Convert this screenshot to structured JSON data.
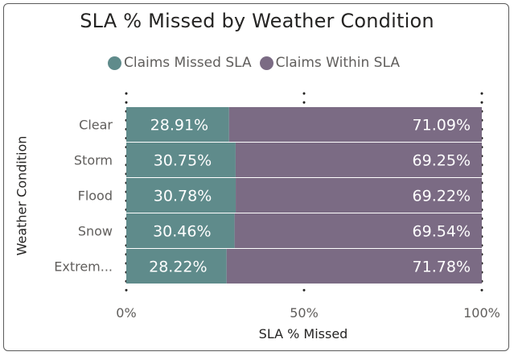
{
  "chart_data": {
    "type": "bar",
    "orientation": "horizontal",
    "stacked": "100%",
    "title": "SLA % Missed by Weather Condition",
    "xlabel": "SLA % Missed",
    "ylabel": "Weather Condition",
    "categories": [
      "Clear",
      "Storm",
      "Flood",
      "Snow",
      "Extrem..."
    ],
    "series": [
      {
        "name": "Claims Missed SLA",
        "values": [
          28.91,
          30.75,
          30.78,
          30.46,
          28.22
        ],
        "labels": [
          "28.91%",
          "30.75%",
          "30.78%",
          "30.46%",
          "28.22%"
        ],
        "color": "#5f8b8b"
      },
      {
        "name": "Claims Within SLA",
        "values": [
          71.09,
          69.25,
          69.22,
          69.54,
          71.78
        ],
        "labels": [
          "71.09%",
          "69.25%",
          "69.22%",
          "69.54%",
          "71.78%"
        ],
        "color": "#7b6b84"
      }
    ],
    "xlim": [
      0,
      100
    ],
    "xticks": [
      0,
      50,
      100
    ],
    "xtick_labels": [
      "0%",
      "50%",
      "100%"
    ],
    "grid": "dotted vertical",
    "legend_position": "top"
  }
}
